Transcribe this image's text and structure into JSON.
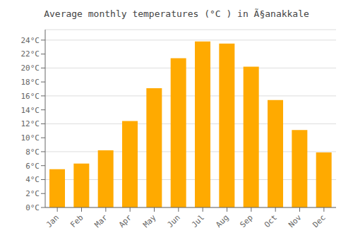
{
  "chart_data": {
    "type": "bar",
    "title": "Average monthly temperatures (°C ) in Ã§anakkale",
    "categories": [
      "Jan",
      "Feb",
      "Mar",
      "Apr",
      "May",
      "Jun",
      "Jul",
      "Aug",
      "Sep",
      "Oct",
      "Nov",
      "Dec"
    ],
    "values": [
      5.5,
      6.3,
      8.2,
      12.4,
      17.1,
      21.4,
      23.8,
      23.5,
      20.2,
      15.4,
      11.1,
      7.9
    ],
    "color": "#FFAA00",
    "ylim": [
      0,
      25.5
    ],
    "yticks": [
      {
        "value": 0,
        "label": "0°C"
      },
      {
        "value": 2,
        "label": "2°C"
      },
      {
        "value": 4,
        "label": "4°C"
      },
      {
        "value": 6,
        "label": "6°C"
      },
      {
        "value": 8,
        "label": "8°C"
      },
      {
        "value": 10,
        "label": "10°C"
      },
      {
        "value": 12,
        "label": "12°C"
      },
      {
        "value": 14,
        "label": "14°C"
      },
      {
        "value": 16,
        "label": "16°C"
      },
      {
        "value": 18,
        "label": "18°C"
      },
      {
        "value": 20,
        "label": "20°C"
      },
      {
        "value": 22,
        "label": "22°C"
      },
      {
        "value": 24,
        "label": "24°C"
      }
    ],
    "grid": true
  }
}
